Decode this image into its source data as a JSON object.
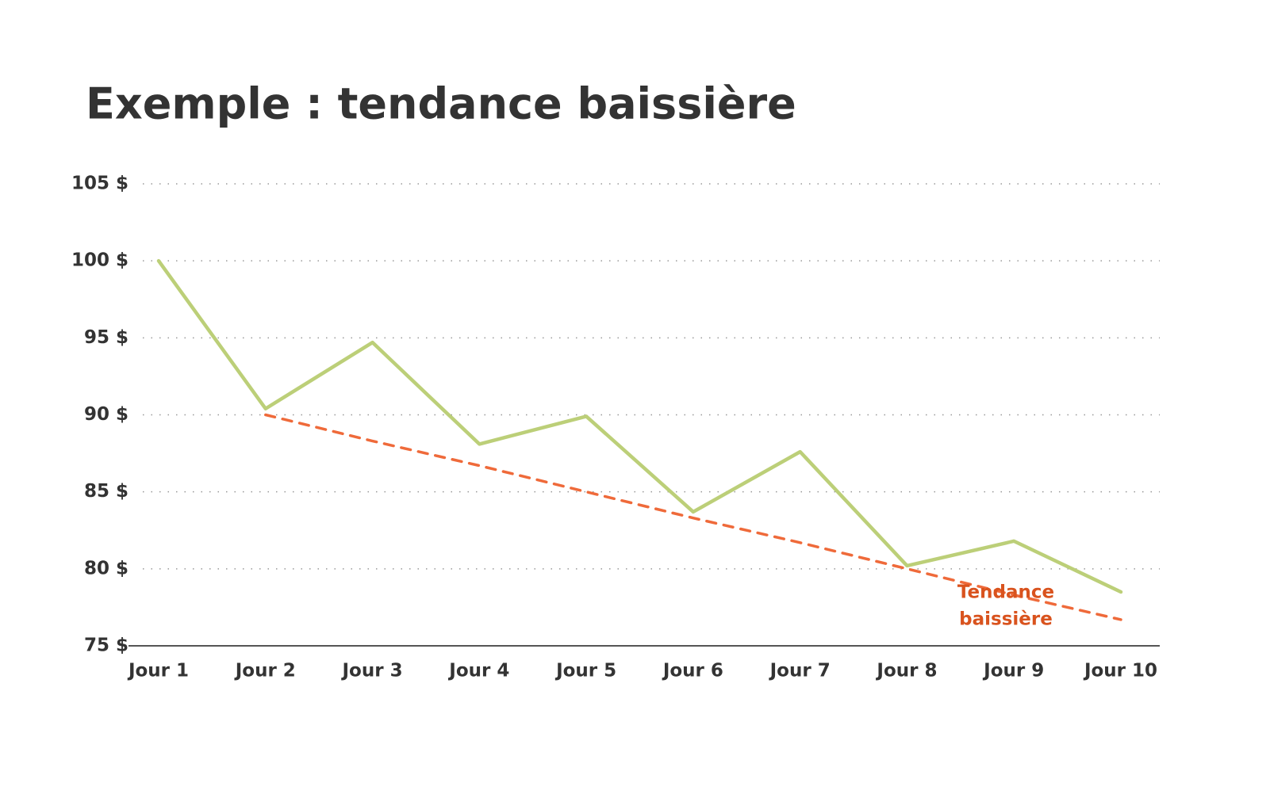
{
  "chart_data": {
    "type": "line",
    "title": "Exemple : tendance baissière",
    "categories": [
      "Jour 1",
      "Jour 2",
      "Jour 3",
      "Jour 4",
      "Jour 5",
      "Jour 6",
      "Jour 7",
      "Jour 8",
      "Jour 9",
      "Jour 10"
    ],
    "series": [
      {
        "color": "#bccf78",
        "style": "solid",
        "values": [
          100,
          90.4,
          94.7,
          88.1,
          89.9,
          83.7,
          87.6,
          80.2,
          81.8,
          78.5
        ]
      },
      {
        "color": "#ef6a3a",
        "style": "dashed",
        "values": [
          null,
          90,
          88.3,
          86.7,
          85,
          83.3,
          81.7,
          80,
          78.3,
          76.7
        ]
      }
    ],
    "annotation": {
      "lines": [
        "Tendance",
        "baissière"
      ],
      "color": "#d9531e"
    },
    "ylim": [
      75,
      105
    ],
    "yticks": [
      {
        "value": 75,
        "label": "75 $"
      },
      {
        "value": 80,
        "label": "80 $"
      },
      {
        "value": 85,
        "label": "85 $"
      },
      {
        "value": 90,
        "label": "90 $"
      },
      {
        "value": 95,
        "label": "95 $"
      },
      {
        "value": 100,
        "label": "100 $"
      },
      {
        "value": 105,
        "label": "105 $"
      }
    ],
    "grid": true
  }
}
